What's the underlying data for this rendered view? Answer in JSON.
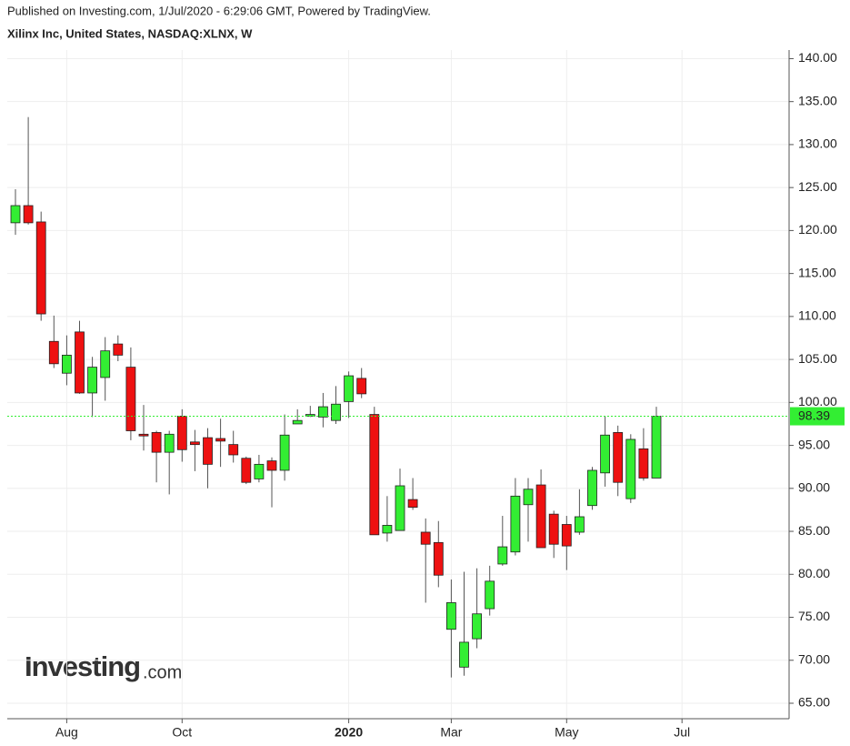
{
  "chart_data": {
    "type": "candlestick",
    "subtitle": "Published on Investing.com, 1/Jul/2020 - 6:29:06 GMT, Powered by TradingView.",
    "title": "Xilinx Inc, United States, NASDAQ:XLNX, W",
    "logo": {
      "brand": "Investing",
      "suffix": ".com"
    },
    "categories": [
      null,
      null,
      null,
      null,
      "Aug",
      null,
      null,
      null,
      null,
      null,
      null,
      null,
      null,
      "Oct",
      null,
      null,
      null,
      null,
      null,
      null,
      null,
      null,
      null,
      null,
      null,
      null,
      "2020",
      null,
      null,
      null,
      null,
      null,
      null,
      null,
      "Mar",
      null,
      null,
      null,
      null,
      null,
      null,
      null,
      null,
      "May",
      null,
      null,
      null,
      null,
      null,
      null,
      null,
      null,
      "Jul",
      null,
      null,
      null,
      null,
      null,
      null,
      null,
      null
    ],
    "open": [
      120.9,
      122.9,
      121,
      107.1,
      103.4,
      108.2,
      101.1,
      102.9,
      106.8,
      104.1,
      96.3,
      96.5,
      94.2,
      98.4,
      95.4,
      95.9,
      95.8,
      95.1,
      93.5,
      91.1,
      93.2,
      92.1,
      97.5,
      98.4,
      98.3,
      97.9,
      100.1,
      102.8,
      98.6,
      84.8,
      85.1,
      88.7,
      84.9,
      83.7,
      73.6,
      69.2,
      72.5,
      76.0,
      81.2,
      82.6,
      88.1,
      90.4,
      87.0,
      85.8,
      84.9,
      88.0,
      91.8,
      96.5,
      88.8,
      94.6,
      91.2,
      null,
      null,
      null,
      null,
      null,
      null,
      null,
      null,
      null,
      null
    ],
    "high": [
      124.8,
      133.2,
      122.2,
      110.1,
      107.8,
      109.5,
      105.3,
      107.6,
      107.8,
      106.4,
      99.7,
      96.7,
      96.7,
      99.2,
      96.8,
      97.0,
      98.1,
      96.7,
      93.7,
      93.9,
      93.6,
      98.6,
      99.2,
      99.6,
      101.1,
      101.9,
      103.6,
      104.0,
      99.5,
      89.1,
      92.3,
      91.2,
      86.5,
      86.2,
      79.4,
      80.3,
      80.7,
      81.0,
      86.8,
      91.2,
      91.2,
      92.2,
      87.4,
      86.8,
      89.9,
      92.5,
      98.4,
      97.3,
      96.3,
      97.0,
      99.5,
      null,
      null,
      null,
      null,
      null,
      null,
      null,
      null,
      null,
      null
    ],
    "low": [
      119.5,
      120.7,
      109.5,
      104.0,
      102.0,
      101.0,
      98.3,
      100.2,
      104.8,
      95.6,
      94.4,
      90.7,
      89.3,
      93.1,
      92.0,
      90.0,
      92.5,
      93.0,
      90.5,
      90.7,
      87.8,
      90.9,
      97.5,
      98.3,
      97.1,
      97.5,
      98.2,
      100.5,
      84.6,
      83.8,
      85.1,
      87.5,
      76.7,
      78.5,
      68.0,
      68.2,
      71.4,
      75.2,
      81.0,
      82.2,
      83.8,
      83.1,
      81.9,
      80.5,
      84.6,
      87.5,
      90.2,
      89.1,
      88.3,
      90.9,
      91.2,
      null,
      null,
      null,
      null,
      null,
      null,
      null,
      null,
      null,
      null
    ],
    "close": [
      122.9,
      120.9,
      110.3,
      104.5,
      105.5,
      101.1,
      104.1,
      106.0,
      105.5,
      96.7,
      96.1,
      94.2,
      96.3,
      94.5,
      95.1,
      92.8,
      95.5,
      93.9,
      90.7,
      92.8,
      92.1,
      96.2,
      97.9,
      98.6,
      99.5,
      99.8,
      103.1,
      101.0,
      84.6,
      85.7,
      90.3,
      87.8,
      83.5,
      79.9,
      76.7,
      72.1,
      75.4,
      79.2,
      83.2,
      89.1,
      89.9,
      83.1,
      83.5,
      83.3,
      86.7,
      92.1,
      96.2,
      90.7,
      95.7,
      91.2,
      98.39,
      null,
      null,
      null,
      null,
      null,
      null,
      null,
      null,
      null,
      null
    ],
    "up_color": "#33ee33",
    "down_color": "#ee1111",
    "last_price": 98.39,
    "last_price_color": "#33ee33",
    "ylim": [
      63.2,
      141
    ],
    "yticks": [
      {
        "value": 65,
        "label": "65.00"
      },
      {
        "value": 70,
        "label": "70.00"
      },
      {
        "value": 75,
        "label": "75.00"
      },
      {
        "value": 80,
        "label": "80.00"
      },
      {
        "value": 85,
        "label": "85.00"
      },
      {
        "value": 90,
        "label": "90.00"
      },
      {
        "value": 95,
        "label": "95.00"
      },
      {
        "value": 100,
        "label": "100.00"
      },
      {
        "value": 105,
        "label": "105.00"
      },
      {
        "value": 110,
        "label": "110.00"
      },
      {
        "value": 115,
        "label": "115.00"
      },
      {
        "value": 120,
        "label": "120.00"
      },
      {
        "value": 125,
        "label": "125.00"
      },
      {
        "value": 130,
        "label": "130.00"
      },
      {
        "value": 135,
        "label": "135.00"
      },
      {
        "value": 140,
        "label": "140.00"
      }
    ],
    "grid": true
  }
}
